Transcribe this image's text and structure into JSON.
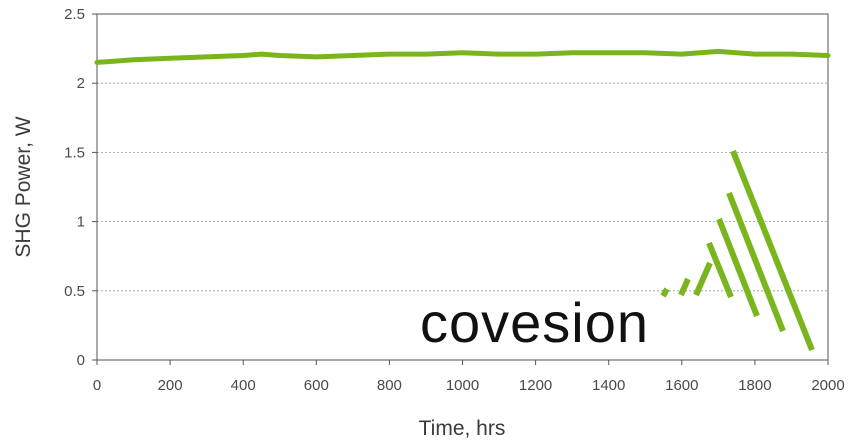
{
  "chart_data": {
    "type": "line",
    "xlabel": "Time, hrs",
    "ylabel": "SHG Power, W",
    "xlim": [
      0,
      2000
    ],
    "ylim": [
      0,
      2.5
    ],
    "x_ticks": [
      0,
      200,
      400,
      600,
      800,
      1000,
      1200,
      1400,
      1600,
      1800,
      2000
    ],
    "y_ticks": [
      0,
      0.5,
      1,
      1.5,
      2,
      2.5
    ],
    "x_tick_labels": [
      "0",
      "200",
      "400",
      "600",
      "800",
      "1000",
      "1200",
      "1400",
      "1600",
      "1800",
      "2000"
    ],
    "y_tick_labels": [
      "0",
      "0.5",
      "1",
      "1.5",
      "2",
      "2.5"
    ],
    "grid": "horizontal dashed",
    "series": [
      {
        "color": "#7ab51d",
        "x": [
          0,
          50,
          100,
          200,
          300,
          400,
          450,
          500,
          600,
          700,
          800,
          900,
          1000,
          1100,
          1200,
          1300,
          1400,
          1500,
          1600,
          1700,
          1750,
          1800,
          1900,
          2000
        ],
        "y": [
          2.15,
          2.16,
          2.17,
          2.18,
          2.19,
          2.2,
          2.21,
          2.2,
          2.19,
          2.2,
          2.21,
          2.21,
          2.22,
          2.21,
          2.21,
          2.22,
          2.22,
          2.22,
          2.21,
          2.23,
          2.22,
          2.21,
          2.21,
          2.2
        ]
      }
    ]
  },
  "logo": {
    "text": "covesion",
    "color": "#7ab51d"
  }
}
